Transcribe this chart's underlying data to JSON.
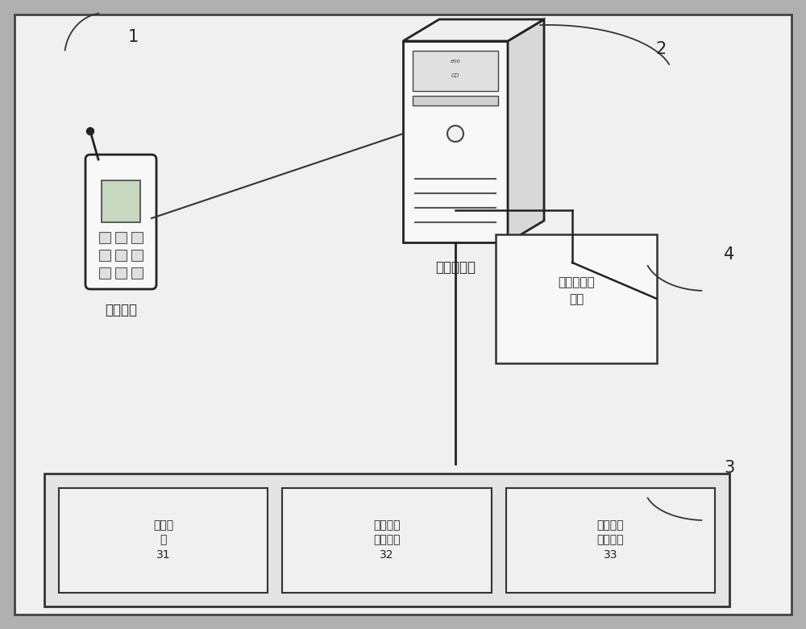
{
  "bg_color": "#f0f0f0",
  "inner_bg": "#f8f8f8",
  "box_edge": "#222222",
  "phone_label": "移动终端",
  "server_label": "云端服务器",
  "monitor_label": "申器状态监\n测器",
  "unit31_label": "接收单\n元\n31",
  "unit32_label": "编码信息\n存储单元\n32",
  "unit33_label": "红外信号\n发射单元\n33",
  "label1": "1",
  "label2": "2",
  "label3": "3",
  "label4": "4"
}
